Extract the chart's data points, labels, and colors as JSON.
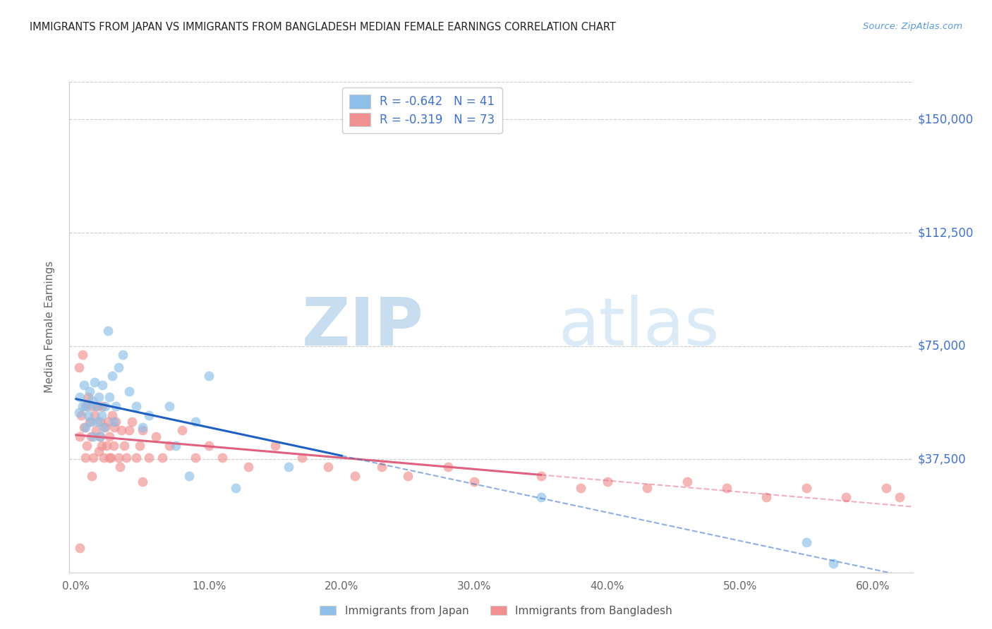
{
  "title": "IMMIGRANTS FROM JAPAN VS IMMIGRANTS FROM BANGLADESH MEDIAN FEMALE EARNINGS CORRELATION CHART",
  "source": "Source: ZipAtlas.com",
  "ylabel": "Median Female Earnings",
  "xlabel_ticks": [
    "0.0%",
    "10.0%",
    "20.0%",
    "30.0%",
    "40.0%",
    "50.0%",
    "60.0%"
  ],
  "xlabel_vals": [
    0.0,
    0.1,
    0.2,
    0.3,
    0.4,
    0.5,
    0.6
  ],
  "ytick_labels": [
    "$37,500",
    "$75,000",
    "$112,500",
    "$150,000"
  ],
  "ytick_vals": [
    37500,
    75000,
    112500,
    150000
  ],
  "ylim": [
    0,
    162500
  ],
  "xlim": [
    -0.005,
    0.63
  ],
  "japan_R": -0.642,
  "japan_N": 41,
  "bangladesh_R": -0.319,
  "bangladesh_N": 73,
  "japan_color": "#8dbfe8",
  "bangladesh_color": "#f09090",
  "japan_line_color": "#2060c0",
  "bangladesh_line_color": "#e06080",
  "legend_japan_label": "R = -0.642   N = 41",
  "legend_bangladesh_label": "R = -0.319   N = 73",
  "watermark_zip": "ZIP",
  "watermark_atlas": "atlas",
  "japan_scatter_x": [
    0.002,
    0.003,
    0.005,
    0.006,
    0.007,
    0.008,
    0.009,
    0.01,
    0.011,
    0.012,
    0.013,
    0.014,
    0.015,
    0.016,
    0.017,
    0.018,
    0.019,
    0.02,
    0.021,
    0.022,
    0.024,
    0.025,
    0.027,
    0.028,
    0.03,
    0.032,
    0.035,
    0.04,
    0.045,
    0.05,
    0.055,
    0.07,
    0.075,
    0.085,
    0.09,
    0.1,
    0.12,
    0.16,
    0.35,
    0.55,
    0.57
  ],
  "japan_scatter_y": [
    53000,
    58000,
    55000,
    62000,
    48000,
    55000,
    52000,
    60000,
    50000,
    57000,
    45000,
    63000,
    55000,
    50000,
    58000,
    45000,
    52000,
    62000,
    48000,
    55000,
    80000,
    58000,
    65000,
    50000,
    55000,
    68000,
    72000,
    60000,
    55000,
    48000,
    52000,
    55000,
    42000,
    32000,
    50000,
    65000,
    28000,
    35000,
    25000,
    10000,
    3000
  ],
  "bangladesh_scatter_x": [
    0.002,
    0.003,
    0.004,
    0.005,
    0.006,
    0.007,
    0.008,
    0.009,
    0.01,
    0.011,
    0.012,
    0.013,
    0.014,
    0.015,
    0.016,
    0.017,
    0.018,
    0.019,
    0.02,
    0.021,
    0.022,
    0.023,
    0.024,
    0.025,
    0.026,
    0.027,
    0.028,
    0.029,
    0.03,
    0.032,
    0.034,
    0.036,
    0.038,
    0.04,
    0.042,
    0.045,
    0.048,
    0.05,
    0.055,
    0.06,
    0.065,
    0.07,
    0.08,
    0.09,
    0.1,
    0.11,
    0.13,
    0.15,
    0.17,
    0.19,
    0.21,
    0.23,
    0.25,
    0.28,
    0.3,
    0.35,
    0.38,
    0.4,
    0.43,
    0.46,
    0.49,
    0.52,
    0.55,
    0.58,
    0.61,
    0.62,
    0.003,
    0.007,
    0.012,
    0.018,
    0.025,
    0.033,
    0.05
  ],
  "bangladesh_scatter_y": [
    68000,
    45000,
    52000,
    72000,
    48000,
    55000,
    42000,
    58000,
    50000,
    45000,
    55000,
    38000,
    52000,
    47000,
    55000,
    40000,
    50000,
    42000,
    55000,
    38000,
    48000,
    42000,
    50000,
    45000,
    38000,
    52000,
    42000,
    48000,
    50000,
    38000,
    47000,
    42000,
    38000,
    47000,
    50000,
    38000,
    42000,
    47000,
    38000,
    45000,
    38000,
    42000,
    47000,
    38000,
    42000,
    38000,
    35000,
    42000,
    38000,
    35000,
    32000,
    35000,
    32000,
    35000,
    30000,
    32000,
    28000,
    30000,
    28000,
    30000,
    28000,
    25000,
    28000,
    25000,
    28000,
    25000,
    8000,
    38000,
    32000,
    45000,
    38000,
    35000,
    30000
  ]
}
